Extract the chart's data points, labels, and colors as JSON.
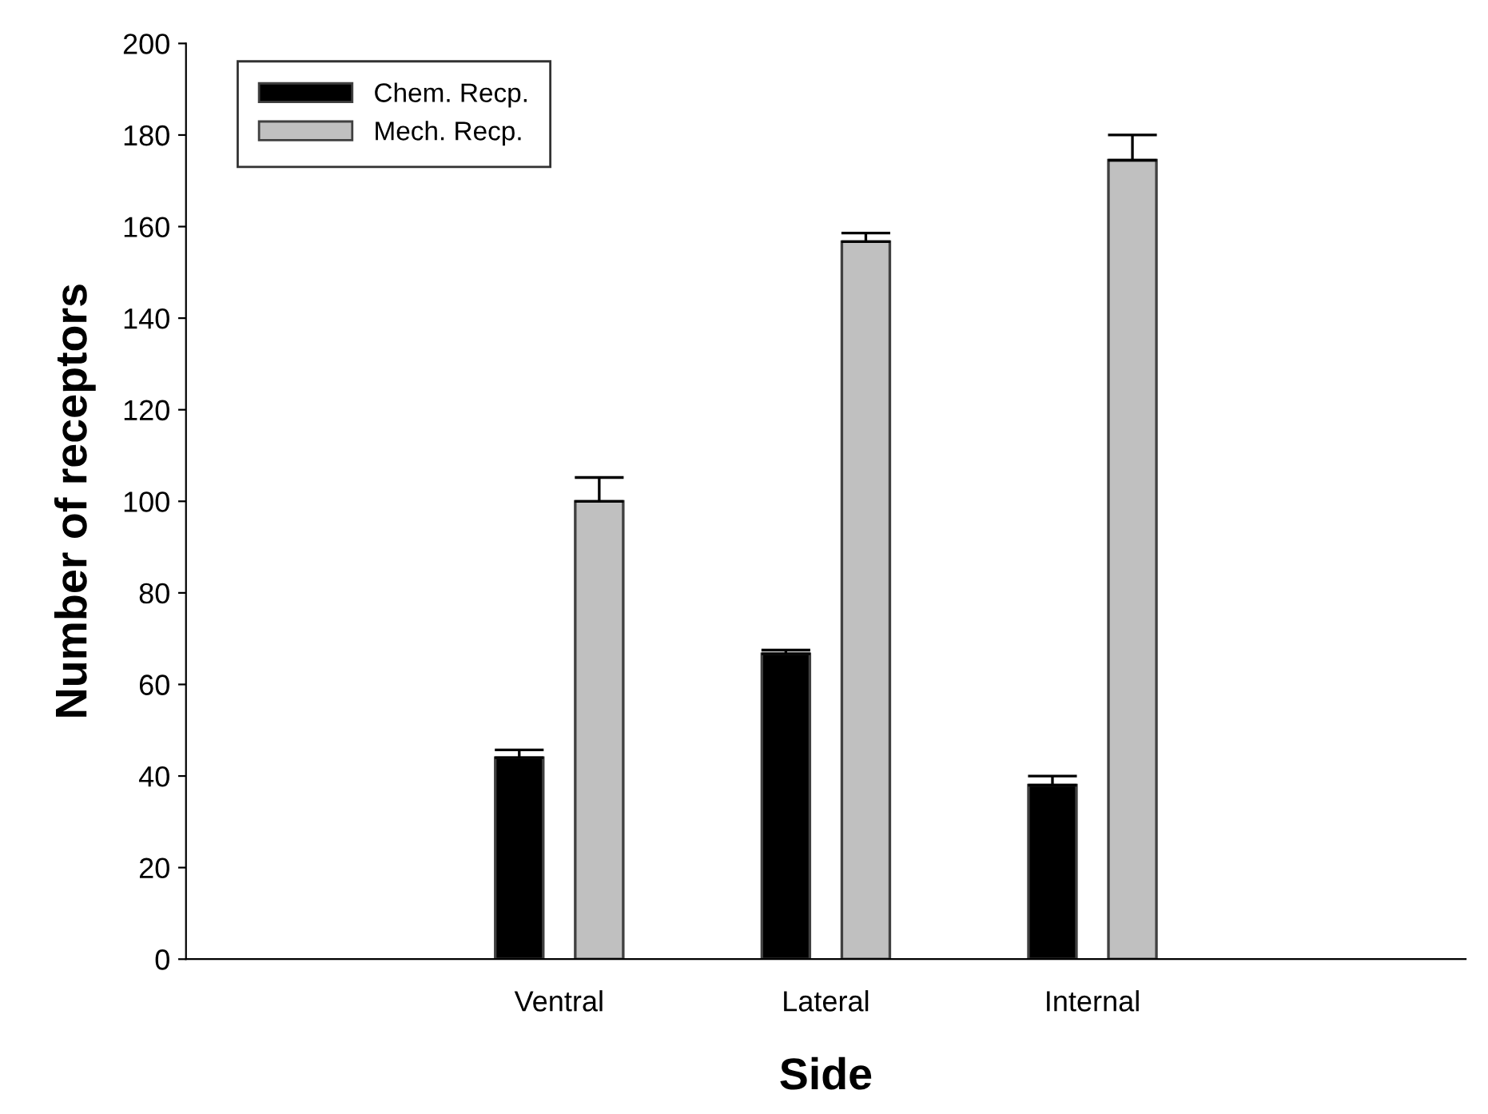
{
  "chart_data": {
    "type": "bar",
    "xlabel": "Side",
    "ylabel": "Number of receptors",
    "categories": [
      "Ventral",
      "Lateral",
      "Internal"
    ],
    "series": [
      {
        "name": "Chem. Recp.",
        "color": "#000000",
        "values": [
          44,
          66.7,
          38
        ],
        "errors": [
          [
            44,
            45.7
          ],
          [
            66.7,
            67.5
          ],
          [
            38,
            40
          ]
        ]
      },
      {
        "name": "Mech. Recp.",
        "color": "#c0c0c0",
        "values": [
          100,
          156.7,
          174.5
        ],
        "errors": [
          [
            100,
            105.2
          ],
          [
            156.7,
            158.6
          ],
          [
            174.5,
            180
          ]
        ]
      }
    ],
    "ylim": [
      0,
      200
    ],
    "yticks": [
      0,
      20,
      40,
      60,
      80,
      100,
      120,
      140,
      160,
      180,
      200
    ],
    "legend": "top left",
    "grid": false
  }
}
